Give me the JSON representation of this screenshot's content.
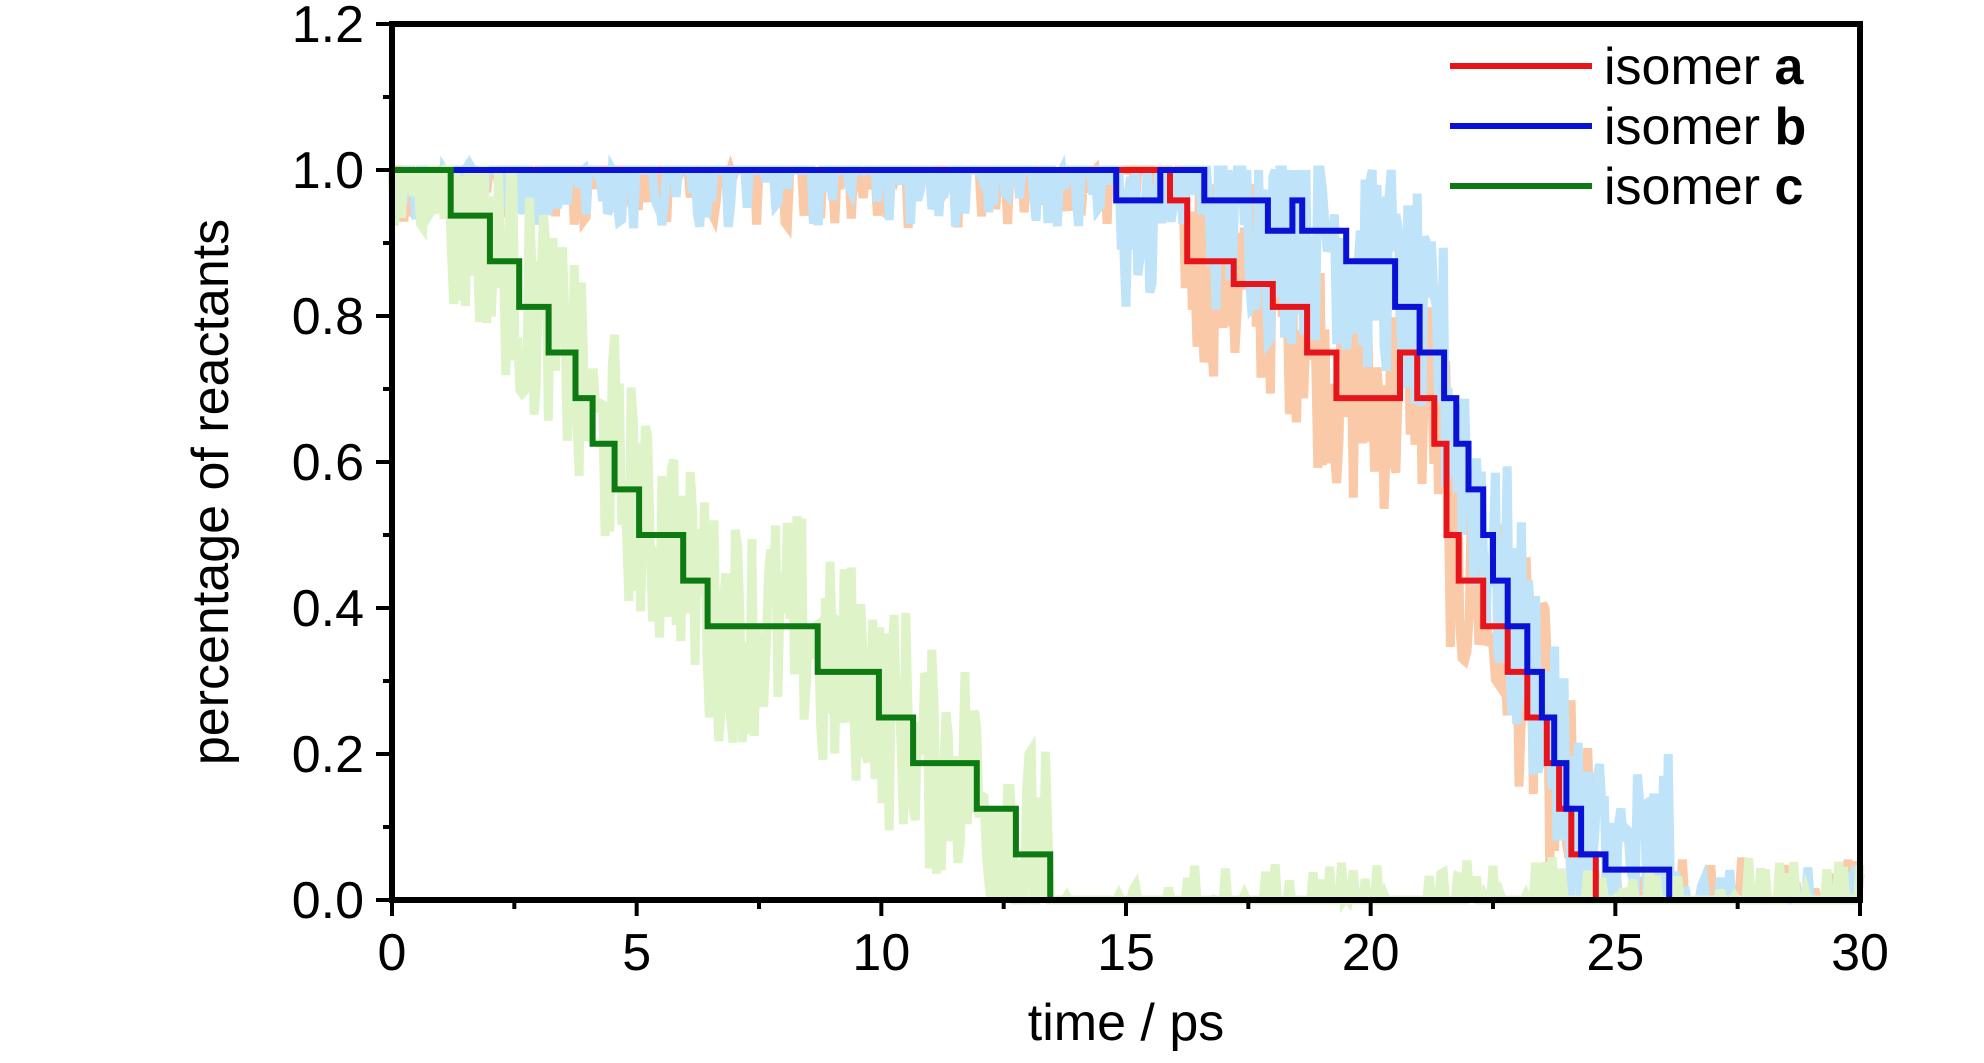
{
  "chart_data": {
    "type": "line",
    "title": "",
    "xlabel": "time / ps",
    "ylabel": "percentage of reactants",
    "xlim": [
      0,
      30
    ],
    "ylim": [
      0,
      1.2
    ],
    "x_ticks": [
      "0",
      "5",
      "10",
      "15",
      "20",
      "25",
      "30"
    ],
    "y_ticks": [
      "0.0",
      "0.2",
      "0.4",
      "0.6",
      "0.8",
      "1.0",
      "1.2"
    ],
    "grid": false,
    "legend_position": "top-right",
    "series": [
      {
        "name": "isomer",
        "name_bold": "a",
        "color": "#e8141b",
        "noise_color": "#f9c9a8",
        "step": [
          [
            0,
            1.0
          ],
          [
            15.9,
            1.0
          ],
          [
            15.9,
            0.9583
          ],
          [
            16.25,
            0.9583
          ],
          [
            16.25,
            0.875
          ],
          [
            17.2,
            0.875
          ],
          [
            17.2,
            0.8438
          ],
          [
            18.0,
            0.8438
          ],
          [
            18.0,
            0.8125
          ],
          [
            18.7,
            0.8125
          ],
          [
            18.7,
            0.75
          ],
          [
            19.3,
            0.75
          ],
          [
            19.3,
            0.6875
          ],
          [
            20.6,
            0.6875
          ],
          [
            20.6,
            0.75
          ],
          [
            20.95,
            0.75
          ],
          [
            20.95,
            0.6875
          ],
          [
            21.3,
            0.6875
          ],
          [
            21.3,
            0.625
          ],
          [
            21.55,
            0.625
          ],
          [
            21.55,
            0.5
          ],
          [
            21.8,
            0.5
          ],
          [
            21.8,
            0.4375
          ],
          [
            22.3,
            0.4375
          ],
          [
            22.3,
            0.375
          ],
          [
            22.8,
            0.375
          ],
          [
            22.8,
            0.3125
          ],
          [
            23.2,
            0.3125
          ],
          [
            23.2,
            0.25
          ],
          [
            23.6,
            0.25
          ],
          [
            23.6,
            0.1875
          ],
          [
            23.85,
            0.1875
          ],
          [
            23.85,
            0.125
          ],
          [
            24.1,
            0.125
          ],
          [
            24.1,
            0.0625
          ],
          [
            24.6,
            0.0625
          ],
          [
            24.6,
            0.0
          ],
          [
            30,
            0.0
          ]
        ]
      },
      {
        "name": "isomer",
        "name_bold": "b",
        "color": "#0a12d6",
        "noise_color": "#bfe3f8",
        "step": [
          [
            0,
            1.0
          ],
          [
            14.8,
            1.0
          ],
          [
            14.8,
            0.9583
          ],
          [
            15.7,
            0.9583
          ],
          [
            15.7,
            1.0
          ],
          [
            16.6,
            1.0
          ],
          [
            16.6,
            0.9583
          ],
          [
            17.9,
            0.9583
          ],
          [
            17.9,
            0.9167
          ],
          [
            18.4,
            0.9167
          ],
          [
            18.4,
            0.9583
          ],
          [
            18.6,
            0.9583
          ],
          [
            18.6,
            0.9167
          ],
          [
            19.5,
            0.9167
          ],
          [
            19.5,
            0.875
          ],
          [
            20.5,
            0.875
          ],
          [
            20.5,
            0.8125
          ],
          [
            21.0,
            0.8125
          ],
          [
            21.0,
            0.75
          ],
          [
            21.5,
            0.75
          ],
          [
            21.5,
            0.6875
          ],
          [
            21.75,
            0.6875
          ],
          [
            21.75,
            0.625
          ],
          [
            22.0,
            0.625
          ],
          [
            22.0,
            0.5625
          ],
          [
            22.3,
            0.5625
          ],
          [
            22.3,
            0.5
          ],
          [
            22.5,
            0.5
          ],
          [
            22.5,
            0.4375
          ],
          [
            22.8,
            0.4375
          ],
          [
            22.8,
            0.375
          ],
          [
            23.2,
            0.375
          ],
          [
            23.2,
            0.3125
          ],
          [
            23.5,
            0.3125
          ],
          [
            23.5,
            0.25
          ],
          [
            23.75,
            0.25
          ],
          [
            23.75,
            0.1875
          ],
          [
            24.0,
            0.1875
          ],
          [
            24.0,
            0.125
          ],
          [
            24.3,
            0.125
          ],
          [
            24.3,
            0.0625
          ],
          [
            24.8,
            0.0625
          ],
          [
            24.8,
            0.0417
          ],
          [
            26.1,
            0.0417
          ],
          [
            26.1,
            0.0
          ],
          [
            30,
            0.0
          ]
        ]
      },
      {
        "name": "isomer",
        "name_bold": "c",
        "color": "#0d7a12",
        "noise_color": "#dff3c9",
        "step": [
          [
            0,
            1.0
          ],
          [
            1.2,
            1.0
          ],
          [
            1.2,
            0.9375
          ],
          [
            2.0,
            0.9375
          ],
          [
            2.0,
            0.875
          ],
          [
            2.6,
            0.875
          ],
          [
            2.6,
            0.8125
          ],
          [
            3.2,
            0.8125
          ],
          [
            3.2,
            0.75
          ],
          [
            3.75,
            0.75
          ],
          [
            3.75,
            0.6875
          ],
          [
            4.1,
            0.6875
          ],
          [
            4.1,
            0.625
          ],
          [
            4.55,
            0.625
          ],
          [
            4.55,
            0.5625
          ],
          [
            5.05,
            0.5625
          ],
          [
            5.05,
            0.5
          ],
          [
            5.95,
            0.5
          ],
          [
            5.95,
            0.4375
          ],
          [
            6.45,
            0.4375
          ],
          [
            6.45,
            0.375
          ],
          [
            8.7,
            0.375
          ],
          [
            8.7,
            0.3125
          ],
          [
            9.95,
            0.3125
          ],
          [
            9.95,
            0.25
          ],
          [
            10.65,
            0.25
          ],
          [
            10.65,
            0.1875
          ],
          [
            11.95,
            0.1875
          ],
          [
            11.95,
            0.125
          ],
          [
            12.75,
            0.125
          ],
          [
            12.75,
            0.0625
          ],
          [
            13.45,
            0.0625
          ],
          [
            13.45,
            0.0
          ],
          [
            30,
            0.0
          ]
        ]
      }
    ]
  }
}
